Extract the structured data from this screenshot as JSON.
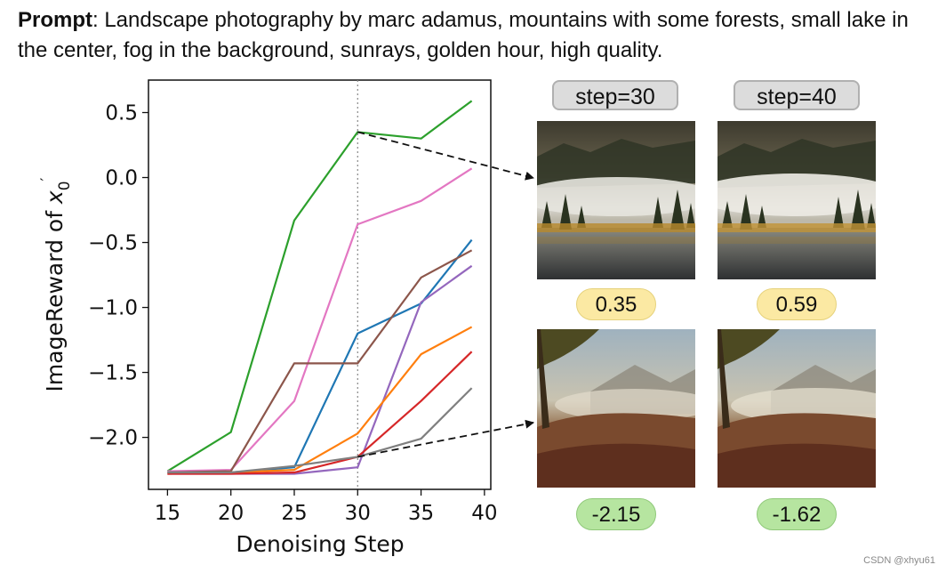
{
  "prompt": {
    "label": "Prompt",
    "text": ": Landscape photography by marc adamus, mountains with some forests, small lake in the center, fog in the background, sunrays, golden hour, high quality."
  },
  "chart_data": {
    "type": "line",
    "xlabel": "Denoising Step",
    "ylabel_main": "ImageReward of ",
    "ylabel_symbol": "x",
    "ylabel_sub": "0",
    "ylabel_prime": "′",
    "x": [
      15,
      20,
      25,
      30,
      35,
      39
    ],
    "xticks": [
      "15",
      "20",
      "25",
      "30",
      "35",
      "40"
    ],
    "xtick_values": [
      15,
      20,
      25,
      30,
      35,
      40
    ],
    "yticks": [
      "0.5",
      "0.0",
      "−0.5",
      "−1.0",
      "−1.5",
      "−2.0"
    ],
    "ytick_values": [
      0.5,
      0.0,
      -0.5,
      -1.0,
      -1.5,
      -2.0
    ],
    "xlim": [
      13.5,
      40.5
    ],
    "ylim": [
      -2.4,
      0.75
    ],
    "vline_x": 30,
    "series": [
      {
        "color": "#2ca02c",
        "values": [
          -2.26,
          -1.96,
          -0.33,
          0.35,
          0.3,
          0.59
        ]
      },
      {
        "color": "#e377c2",
        "values": [
          -2.26,
          -2.25,
          -1.72,
          -0.36,
          -0.18,
          0.07
        ]
      },
      {
        "color": "#1f77b4",
        "values": [
          -2.27,
          -2.27,
          -2.23,
          -1.2,
          -0.97,
          -0.48
        ]
      },
      {
        "color": "#8c564b",
        "values": [
          -2.27,
          -2.26,
          -1.43,
          -1.43,
          -0.77,
          -0.56
        ]
      },
      {
        "color": "#9467bd",
        "values": [
          -2.28,
          -2.28,
          -2.28,
          -2.23,
          -0.96,
          -0.68
        ]
      },
      {
        "color": "#ff7f0e",
        "values": [
          -2.28,
          -2.27,
          -2.25,
          -1.97,
          -1.36,
          -1.15
        ]
      },
      {
        "color": "#d62728",
        "values": [
          -2.28,
          -2.28,
          -2.27,
          -2.15,
          -1.72,
          -1.34
        ]
      },
      {
        "color": "#7f7f7f",
        "values": [
          -2.27,
          -2.27,
          -2.22,
          -2.15,
          -2.01,
          -1.62
        ]
      }
    ]
  },
  "panels": {
    "tags": [
      "step=30",
      "step=40"
    ],
    "top_scores": [
      "0.35",
      "0.59"
    ],
    "bottom_scores": [
      "-2.15",
      "-1.62"
    ]
  },
  "watermark": "CSDN @xhyu61"
}
